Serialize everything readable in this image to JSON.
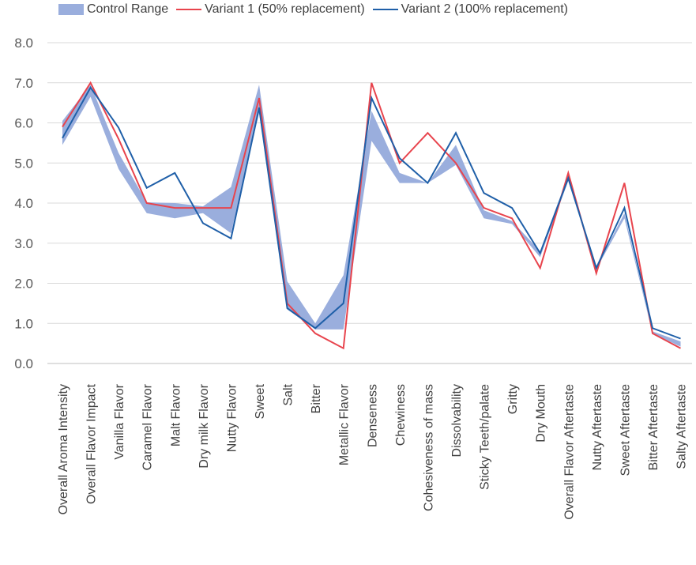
{
  "chart_data": {
    "type": "line",
    "title": "",
    "xlabel": "",
    "ylabel": "",
    "ylim": [
      0,
      8
    ],
    "yticks": [
      "0.0",
      "1.0",
      "2.0",
      "3.0",
      "4.0",
      "5.0",
      "6.0",
      "7.0",
      "8.0"
    ],
    "grid": true,
    "legend_position": "top",
    "categories": [
      "Overall Aroma Intensity",
      "Overall Flavor Impact",
      "Vanilla Flavor",
      "Caramel Flavor",
      "Malt Flavor",
      "Dry milk Flavor",
      "Nutty Flavor",
      "Sweet",
      "Salt",
      "Bitter",
      "Metallic Flavor",
      "Denseness",
      "Chewiness",
      "Cohesiveness of mass",
      "Dissolvability",
      "Sticky Teeth/palate",
      "Gritty",
      "Dry Mouth",
      "Overall Flavor Aftertaste",
      "Nutty Aftertaste",
      "Sweet Aftertaste",
      "Bitter Aftertaste",
      "Salty Aftertaste"
    ],
    "band": {
      "name": "Control Range",
      "color": "#9aaedd",
      "lower": [
        5.45,
        6.65,
        4.85,
        3.75,
        3.62,
        3.75,
        3.25,
        6.25,
        1.35,
        0.85,
        0.85,
        5.55,
        4.5,
        4.5,
        4.95,
        3.62,
        3.48,
        2.65,
        4.55,
        2.35,
        3.62,
        0.75,
        0.42
      ],
      "upper": [
        6.05,
        6.95,
        5.25,
        4.02,
        4.0,
        3.92,
        4.4,
        6.95,
        2.05,
        1.0,
        2.2,
        6.3,
        4.75,
        4.5,
        5.45,
        3.82,
        3.55,
        2.8,
        4.7,
        2.4,
        3.75,
        0.8,
        0.55
      ]
    },
    "series": [
      {
        "name": "Variant 1 (50% replacement)",
        "color": "#e8444d",
        "values": [
          5.9,
          7.0,
          5.6,
          4.0,
          3.88,
          3.88,
          3.88,
          6.62,
          1.5,
          0.75,
          0.38,
          7.0,
          5.0,
          5.75,
          5.0,
          3.88,
          3.62,
          2.38,
          4.75,
          2.25,
          4.5,
          0.75,
          0.38
        ]
      },
      {
        "name": "Variant 2 (100% replacement)",
        "color": "#1f5fa8",
        "values": [
          5.62,
          6.88,
          5.88,
          4.38,
          4.75,
          3.5,
          3.12,
          6.38,
          1.38,
          0.88,
          1.5,
          6.62,
          5.12,
          4.5,
          5.75,
          4.25,
          3.88,
          2.75,
          4.62,
          2.38,
          3.88,
          0.88,
          0.62
        ]
      }
    ]
  }
}
